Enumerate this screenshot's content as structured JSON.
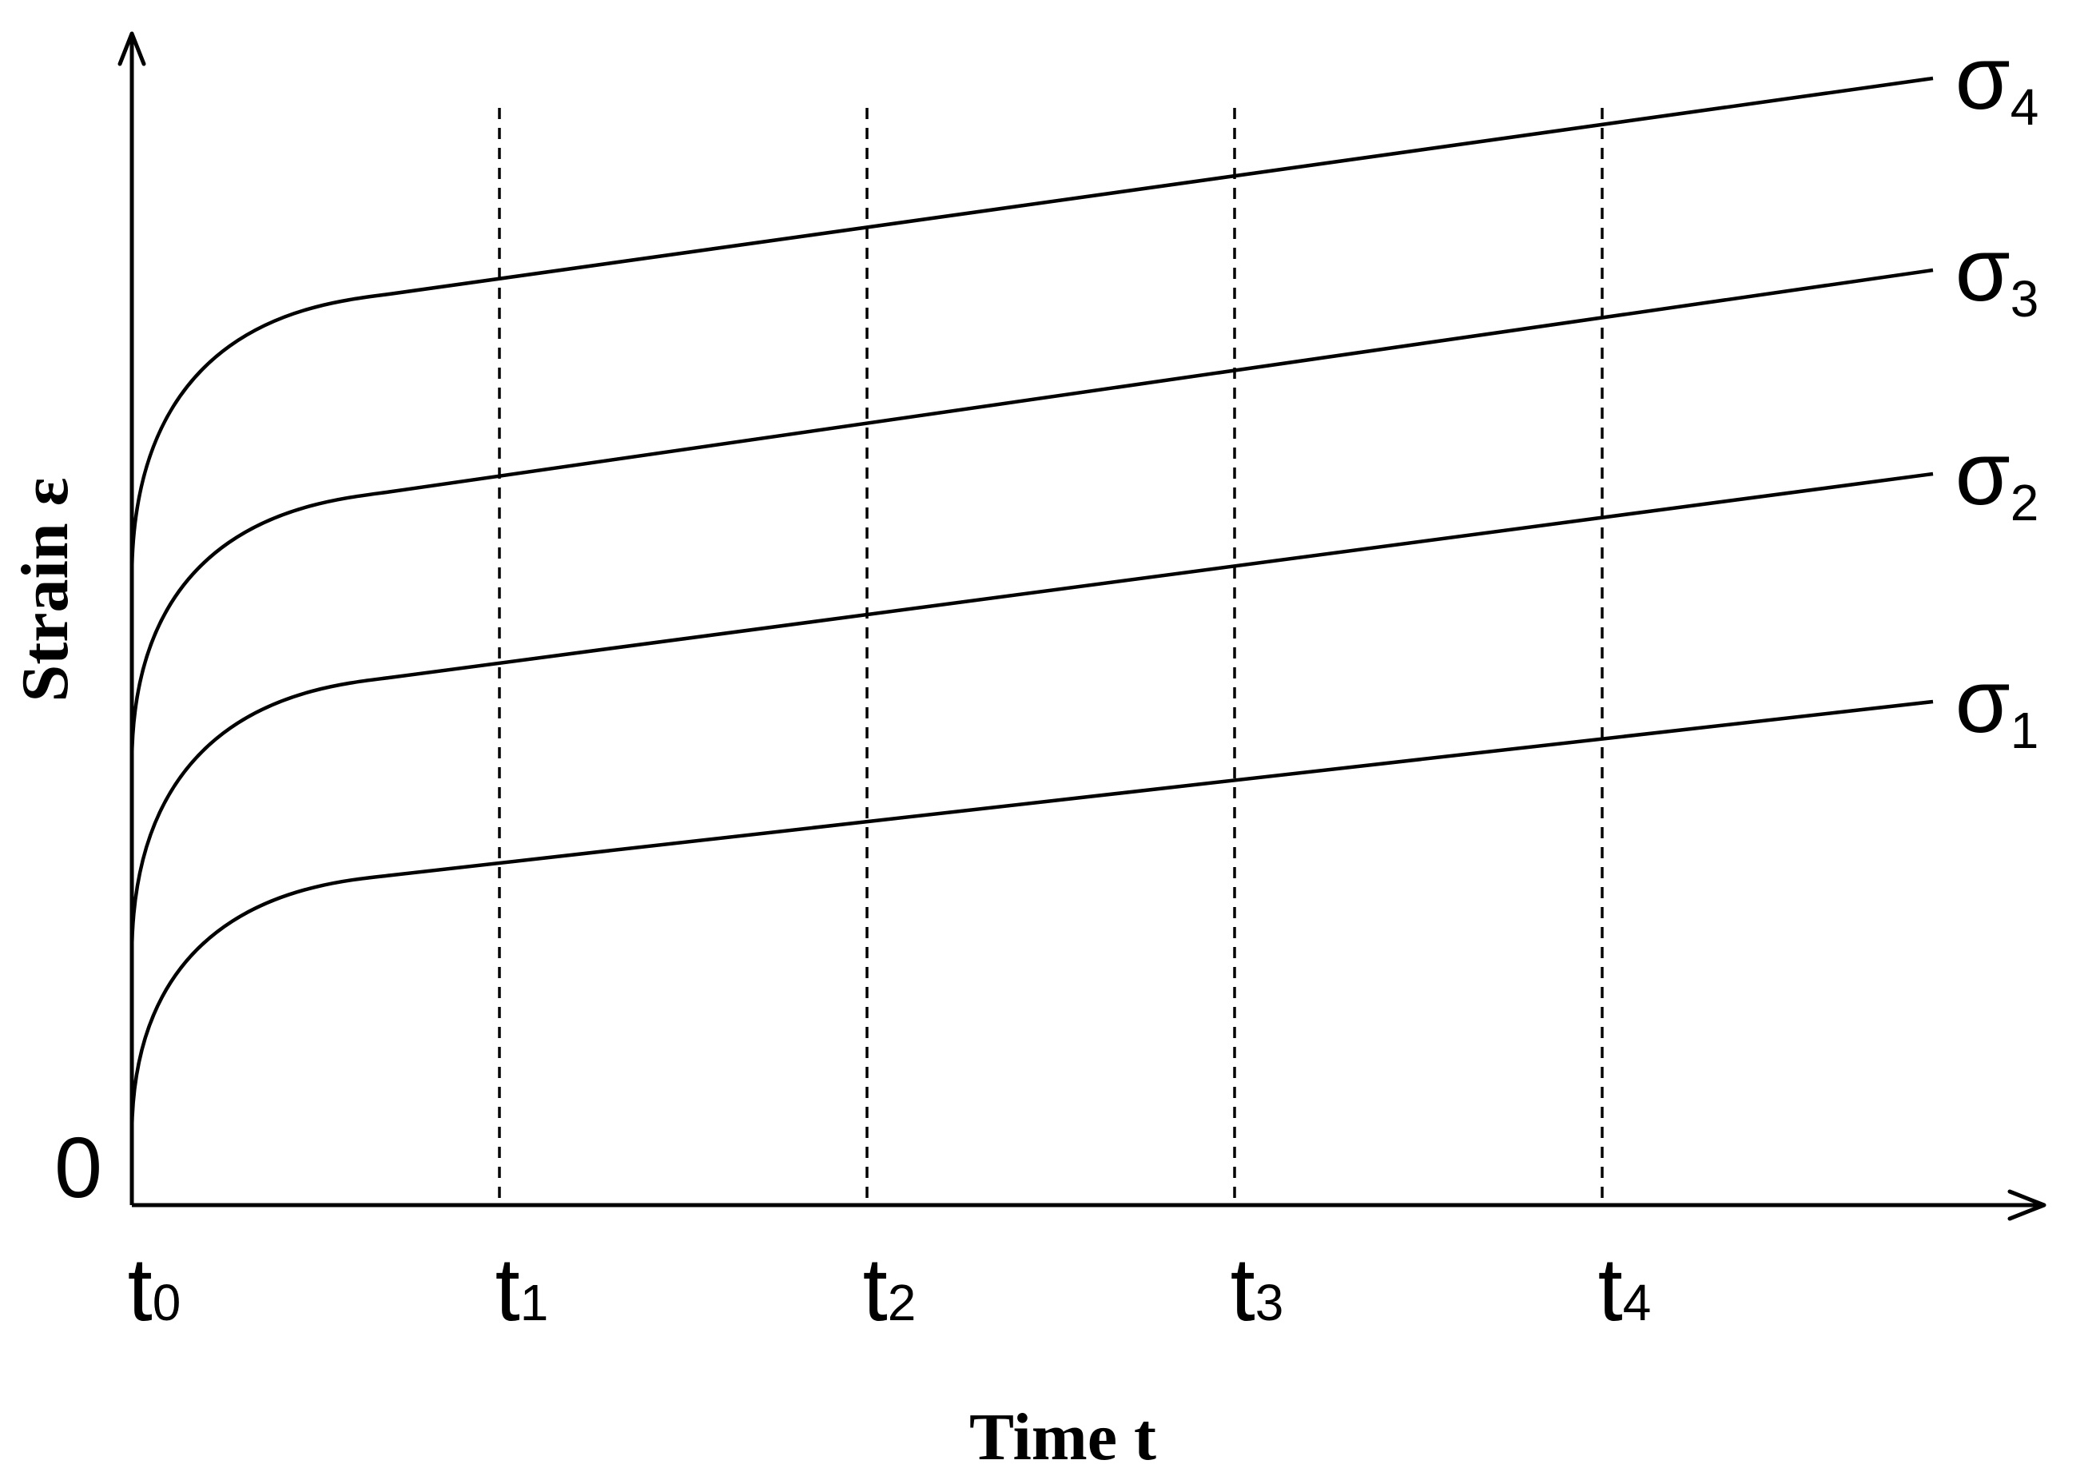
{
  "chart_data": {
    "type": "line",
    "title": "",
    "xlabel": "Time t",
    "ylabel": "Strain ε",
    "origin_label": "0",
    "x_ticks": [
      {
        "base": "t",
        "sub": "0",
        "x": 0
      },
      {
        "base": "t",
        "sub": "1",
        "x": 1
      },
      {
        "base": "t",
        "sub": "2",
        "x": 2
      },
      {
        "base": "t",
        "sub": "3",
        "x": 3
      },
      {
        "base": "t",
        "sub": "4",
        "x": 4
      }
    ],
    "xlim": [
      0,
      4.9
    ],
    "ylim": [
      0,
      10
    ],
    "grid": "vertical dashed lines at t1–t4",
    "series": [
      {
        "name": "σ1",
        "base": "σ",
        "sub": "1",
        "initial": 0.6,
        "knee_t": 0.7,
        "knee": 2.75,
        "end_t": 4.9,
        "end": 4.2
      },
      {
        "name": "σ2",
        "base": "σ",
        "sub": "2",
        "initial": 2.1,
        "knee_t": 0.7,
        "knee": 4.4,
        "end_t": 4.9,
        "end": 6.1
      },
      {
        "name": "σ3",
        "base": "σ",
        "sub": "3",
        "initial": 3.7,
        "knee_t": 0.7,
        "knee": 5.95,
        "end_t": 4.9,
        "end": 7.8
      },
      {
        "name": "σ4",
        "base": "σ",
        "sub": "4",
        "initial": 5.25,
        "knee_t": 0.7,
        "knee": 7.6,
        "end_t": 4.9,
        "end": 9.4
      }
    ]
  }
}
